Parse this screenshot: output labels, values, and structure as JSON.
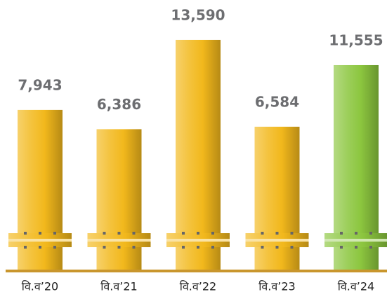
{
  "chart_data": {
    "type": "bar",
    "categories": [
      "वि.व’20",
      "वि.व’21",
      "वि.व’22",
      "वि.व’23",
      "वि.व’24"
    ],
    "values": [
      7943,
      6386,
      13590,
      6584,
      11555
    ],
    "value_labels": [
      "7,943",
      "6,386",
      "13,590",
      "6,584",
      "11,555"
    ],
    "colors": [
      "#f2b81c",
      "#f2b81c",
      "#f2b81c",
      "#f2b81c",
      "#8cc63f"
    ],
    "ylim": [
      -5000,
      15000
    ]
  }
}
